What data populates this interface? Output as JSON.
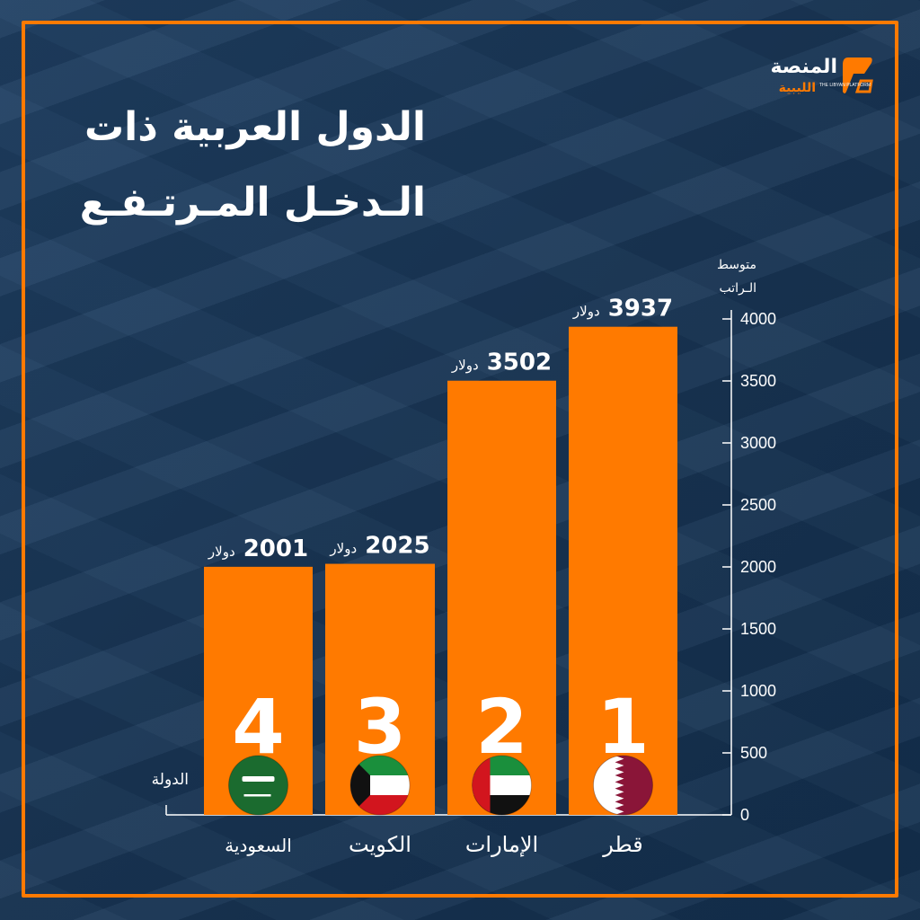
{
  "title_lines": [
    "الدول العربية ذات",
    "الـدخـل المـرتـفـع"
  ],
  "logo": {
    "name": "المنصة",
    "sub": "الليبية",
    "english": "THE LIBYAN PLATFORM"
  },
  "colors": {
    "accent": "#ff7a00",
    "background": "#1b3a5c",
    "text": "#ffffff"
  },
  "chart_data": {
    "type": "bar",
    "categories": [
      "السعودية",
      "الكويت",
      "الإمارات",
      "قطر"
    ],
    "values": [
      2001,
      2025,
      3502,
      3937
    ],
    "value_labels": [
      "2001",
      "2025",
      "3502",
      "3937"
    ],
    "unit": "دولار",
    "ranks": [
      "4",
      "3",
      "2",
      "1"
    ],
    "flags": [
      "saudi-flag-icon",
      "kuwait-flag-icon",
      "uae-flag-icon",
      "qatar-flag-icon"
    ],
    "ylabel": "متوسط الـراتب",
    "xlabel": "الدولة",
    "ylim": [
      0,
      4000
    ],
    "yticks": [
      0,
      500,
      1000,
      1500,
      2000,
      2500,
      3000,
      3500,
      4000
    ],
    "axis_side": "right",
    "grid": false
  }
}
